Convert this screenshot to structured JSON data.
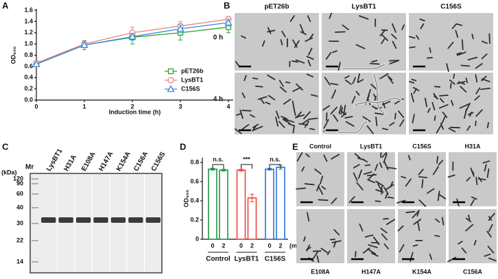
{
  "panel_labels": [
    "A",
    "B",
    "C",
    "D",
    "E"
  ],
  "chart_data": [
    {
      "type": "line",
      "xlabel": "Induction time (h)",
      "ylabel": "OD₆₀₀",
      "x": [
        0,
        1,
        2,
        3,
        4
      ],
      "xlim": [
        0,
        4.1
      ],
      "xticks": [
        0,
        1,
        2,
        3,
        4
      ],
      "ylim": [
        0,
        1.6
      ],
      "yticks": [
        {
          "value": 0,
          "label": "0.0"
        },
        0.2,
        0.4,
        0.6,
        0.8,
        {
          "value": 1,
          "label": "1.0"
        },
        1.2,
        1.4,
        1.6
      ],
      "legend": "lower right",
      "series": [
        {
          "name": "pET26b",
          "color": "#2ca02c",
          "marker": "square",
          "values": [
            0.65,
            0.98,
            1.12,
            1.2,
            1.3
          ],
          "errors": [
            0.02,
            0.08,
            0.12,
            0.13,
            0.1
          ]
        },
        {
          "name": "LysBT1",
          "color": "#f08080",
          "marker": "circle",
          "values": [
            0.66,
            1.0,
            1.2,
            1.32,
            1.44
          ],
          "errors": [
            0.02,
            0.05,
            0.1,
            0.08,
            0.05
          ]
        },
        {
          "name": "C156S",
          "color": "#2b8ce0",
          "marker": "triangle",
          "values": [
            0.64,
            0.98,
            1.13,
            1.27,
            1.38
          ],
          "errors": [
            0.02,
            0.04,
            0.06,
            0.07,
            0.06
          ]
        }
      ]
    },
    {
      "type": "bar",
      "ylabel": "OD₆₀₀",
      "ylim": [
        0,
        0.85
      ],
      "yticks": [
        0,
        0.2,
        0.4,
        0.6,
        0.8
      ],
      "x_unit": "(min)",
      "groups": [
        {
          "name": "Control",
          "color": "#1a9641",
          "labels": [
            "0",
            "2"
          ],
          "values": [
            0.73,
            0.72
          ],
          "errors": [
            0.01,
            0.01
          ],
          "significance": "n.s."
        },
        {
          "name": "LysBT1",
          "color": "#e8453c",
          "labels": [
            "0",
            "2"
          ],
          "values": [
            0.72,
            0.43
          ],
          "errors": [
            0.01,
            0.04
          ],
          "significance": "***"
        },
        {
          "name": "C156S",
          "color": "#2a6fd6",
          "labels": [
            "0",
            "2"
          ],
          "values": [
            0.73,
            0.75
          ],
          "errors": [
            0.01,
            0.02
          ],
          "significance": "n.s."
        }
      ]
    }
  ],
  "panel_b": {
    "columns": [
      "pET26b",
      "LysBT1",
      "C156S"
    ],
    "rows": [
      "0 h",
      "4 h"
    ]
  },
  "panel_c": {
    "unit": "(kDa)",
    "ladder_label": "Mr",
    "ladder": [
      120,
      90,
      60,
      40,
      30,
      22,
      14
    ],
    "lanes": [
      "LysBT1",
      "H31A",
      "E108A",
      "H147A",
      "K154A",
      "C156A",
      "C156S"
    ]
  },
  "panel_e": {
    "top": [
      "Control",
      "LysBT1",
      "C156S",
      "H31A"
    ],
    "bottom": [
      "E108A",
      "H147A",
      "K154A",
      "C156A"
    ]
  }
}
